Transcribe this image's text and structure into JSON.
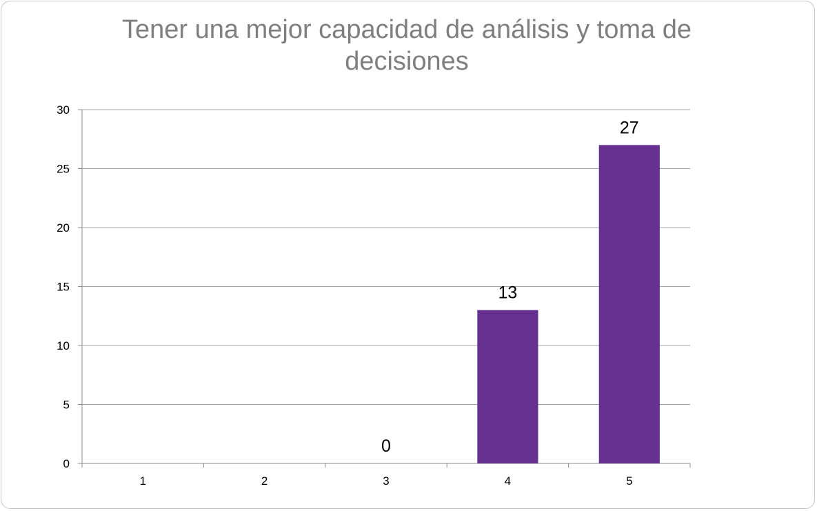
{
  "chart_data": {
    "type": "bar",
    "title": "Tener una mejor capacidad de análisis y toma de decisiones",
    "xlabel": "",
    "ylabel": "",
    "categories": [
      "1",
      "2",
      "3",
      "4",
      "5"
    ],
    "values": [
      null,
      null,
      0,
      13,
      27
    ],
    "data_labels": [
      "",
      "",
      "0",
      "13",
      "27"
    ],
    "ylim": [
      0,
      30
    ],
    "yticks": [
      "0",
      "5",
      "10",
      "15",
      "20",
      "25",
      "30"
    ],
    "grid": true,
    "legend": "none",
    "bar_color": "#663090"
  }
}
